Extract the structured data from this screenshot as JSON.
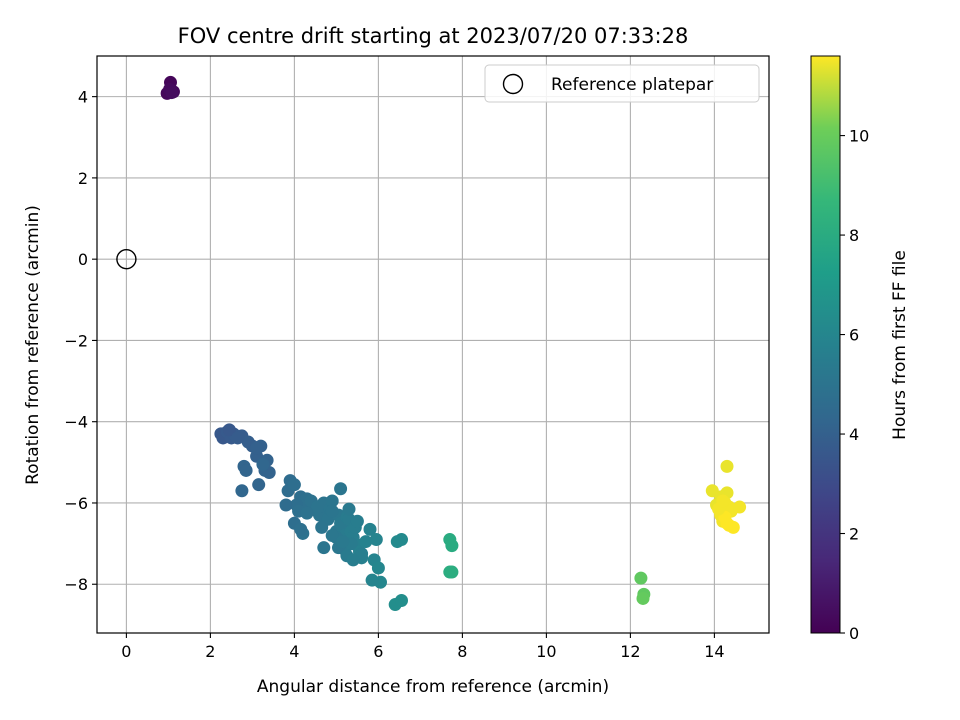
{
  "chart_data": {
    "type": "scatter",
    "title": "FOV centre drift starting at 2023/07/20 07:33:28",
    "xlabel": "Angular distance from reference (arcmin)",
    "ylabel": "Rotation from reference (arcmin)",
    "colorbar_label": "Hours from first FF file",
    "xlim": [
      -0.7,
      15.3
    ],
    "ylim": [
      -9.2,
      5.0
    ],
    "x_ticks": [
      0,
      2,
      4,
      6,
      8,
      10,
      12,
      14
    ],
    "y_ticks": [
      -8,
      -6,
      -4,
      -2,
      0,
      2,
      4
    ],
    "colorbar_range": [
      0,
      11.6
    ],
    "colorbar_ticks": [
      0,
      2,
      4,
      6,
      8,
      10
    ],
    "colormap": "viridis",
    "grid": true,
    "legend": {
      "position": "upper-right",
      "entries": [
        "Reference platepar"
      ]
    },
    "reference_point": {
      "x": 0,
      "y": 0
    },
    "series": [
      {
        "x": [
          1.05,
          0.97,
          1.12,
          1.03,
          1.08
        ],
        "y": [
          4.35,
          4.08,
          4.12,
          4.18,
          4.1
        ],
        "hours": [
          0.2,
          0.25,
          0.3,
          0.35,
          0.4
        ]
      },
      {
        "x": [
          2.25,
          2.3,
          2.4,
          2.5,
          2.55,
          2.6,
          2.75,
          2.9,
          3.0,
          3.1,
          3.2,
          3.35,
          3.3,
          3.4,
          3.15,
          2.8,
          2.85,
          2.75,
          3.25,
          3.1,
          2.45,
          2.65
        ],
        "y": [
          -4.3,
          -4.4,
          -4.25,
          -4.4,
          -4.3,
          -4.35,
          -4.35,
          -4.5,
          -4.6,
          -4.85,
          -4.6,
          -4.95,
          -5.2,
          -5.25,
          -5.55,
          -5.1,
          -5.2,
          -5.7,
          -5.05,
          -4.65,
          -4.2,
          -4.4
        ],
        "hours": [
          3.6,
          3.6,
          3.7,
          3.7,
          3.7,
          3.8,
          3.8,
          3.9,
          3.9,
          4.0,
          4.0,
          4.1,
          4.1,
          4.1,
          4.2,
          4.2,
          4.2,
          4.3,
          4.3,
          4.0,
          3.6,
          3.8
        ]
      },
      {
        "x": [
          3.9,
          3.85,
          4.0,
          4.15,
          4.2,
          4.3,
          4.45,
          4.55,
          4.6,
          4.7,
          4.75,
          4.8,
          4.85,
          4.9,
          5.0,
          5.05,
          5.1,
          5.15,
          5.2,
          5.25,
          5.3,
          5.35,
          5.4,
          5.45,
          5.5,
          5.55,
          5.6,
          5.7,
          5.8,
          5.9,
          5.95,
          6.0,
          6.05,
          4.25,
          4.05,
          4.1,
          4.2,
          4.65,
          4.9,
          5.0,
          5.2,
          5.35,
          5.05,
          5.45,
          5.6,
          5.85,
          4.4,
          4.55,
          4.7,
          5.1,
          5.3,
          3.8,
          4.0,
          4.3,
          4.15,
          4.9,
          5.15,
          5.25,
          5.4,
          5.5
        ],
        "y": [
          -5.45,
          -5.7,
          -5.55,
          -5.85,
          -6.0,
          -5.9,
          -6.05,
          -6.2,
          -6.3,
          -6.0,
          -6.1,
          -6.4,
          -6.15,
          -5.95,
          -6.7,
          -6.3,
          -6.5,
          -6.6,
          -6.8,
          -6.35,
          -6.4,
          -6.7,
          -6.85,
          -7.0,
          -7.05,
          -7.2,
          -7.35,
          -6.95,
          -6.65,
          -7.4,
          -6.9,
          -7.6,
          -7.95,
          -6.1,
          -6.05,
          -6.2,
          -6.75,
          -6.6,
          -6.2,
          -6.85,
          -7.15,
          -7.0,
          -7.1,
          -6.6,
          -7.25,
          -7.9,
          -5.95,
          -6.1,
          -7.1,
          -5.65,
          -6.15,
          -6.05,
          -6.5,
          -6.25,
          -6.65,
          -6.8,
          -6.95,
          -7.3,
          -7.4,
          -6.45
        ],
        "hours": [
          4.6,
          4.6,
          4.7,
          4.7,
          4.8,
          4.8,
          4.9,
          4.9,
          5.0,
          5.0,
          5.0,
          5.1,
          5.1,
          5.1,
          5.2,
          5.2,
          5.3,
          5.3,
          5.4,
          5.4,
          5.4,
          5.5,
          5.5,
          5.6,
          5.6,
          5.7,
          5.7,
          5.8,
          5.8,
          5.9,
          5.9,
          6.0,
          6.0,
          4.8,
          4.7,
          4.8,
          4.9,
          5.0,
          5.1,
          5.2,
          5.3,
          5.4,
          5.2,
          5.5,
          5.6,
          5.9,
          4.9,
          5.0,
          5.1,
          5.1,
          5.3,
          4.6,
          4.7,
          4.9,
          4.8,
          5.2,
          5.3,
          5.4,
          5.5,
          5.5
        ]
      },
      {
        "x": [
          6.45,
          6.55,
          6.4,
          6.55
        ],
        "y": [
          -6.95,
          -6.9,
          -8.5,
          -8.4
        ],
        "hours": [
          6.2,
          6.2,
          6.4,
          6.4
        ]
      },
      {
        "x": [
          7.7,
          7.75,
          7.7,
          7.75
        ],
        "y": [
          -6.9,
          -7.05,
          -7.7,
          -7.7
        ],
        "hours": [
          8.0,
          8.0,
          8.1,
          8.1
        ]
      },
      {
        "x": [
          12.25,
          12.32,
          12.3
        ],
        "y": [
          -7.85,
          -8.25,
          -8.35
        ],
        "hours": [
          9.8,
          9.8,
          9.9
        ]
      },
      {
        "x": [
          14.3,
          13.95,
          14.3,
          14.05,
          14.15,
          14.2,
          14.25,
          14.35,
          14.4,
          14.6,
          14.15,
          14.2,
          14.3,
          14.25,
          14.1,
          14.35,
          14.45,
          14.2
        ],
        "y": [
          -5.1,
          -5.7,
          -5.75,
          -6.05,
          -5.85,
          -6.2,
          -6.0,
          -6.1,
          -6.2,
          -6.1,
          -6.3,
          -6.45,
          -6.5,
          -6.35,
          -6.15,
          -6.55,
          -6.6,
          -5.95
        ],
        "hours": [
          11.4,
          11.4,
          11.4,
          11.4,
          11.4,
          11.5,
          11.5,
          11.5,
          11.5,
          11.5,
          11.5,
          11.5,
          11.6,
          11.6,
          11.5,
          11.6,
          11.6,
          11.5
        ]
      }
    ]
  }
}
